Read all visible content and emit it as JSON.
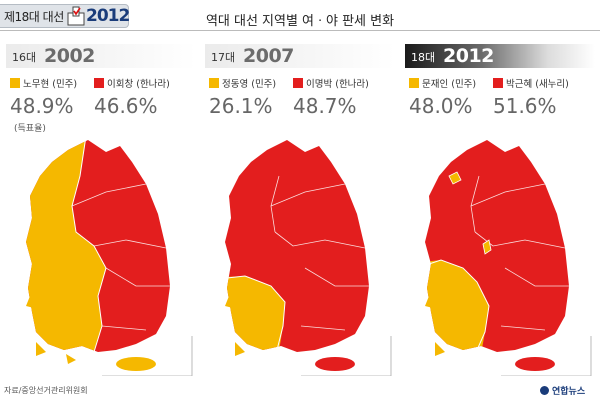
{
  "badge": {
    "label": "제18대 대선",
    "year": "2012"
  },
  "title": "역대 대선 지역별 여ㆍ야 판세 변화",
  "colors": {
    "yellow": "#F5B800",
    "red": "#E31E1E"
  },
  "elections": [
    {
      "term": "16대",
      "year": "2002",
      "candidates": [
        {
          "label": "노무현 (민주)",
          "pct": "48.9%",
          "color": "#F5B800"
        },
        {
          "label": "이회창 (한나라)",
          "pct": "46.6%",
          "color": "#E31E1E"
        }
      ],
      "note": "(득표율)"
    },
    {
      "term": "17대",
      "year": "2007",
      "candidates": [
        {
          "label": "정동영 (민주)",
          "pct": "26.1%",
          "color": "#F5B800"
        },
        {
          "label": "이명박 (한나라)",
          "pct": "48.7%",
          "color": "#E31E1E"
        }
      ]
    },
    {
      "term": "18대",
      "year": "2012",
      "candidates": [
        {
          "label": "문재인 (민주)",
          "pct": "48.0%",
          "color": "#F5B800"
        },
        {
          "label": "박근혜 (새누리)",
          "pct": "51.6%",
          "color": "#E31E1E"
        }
      ]
    }
  ],
  "source": "자료/중앙선거관리위원회",
  "agency": "연합뉴스"
}
